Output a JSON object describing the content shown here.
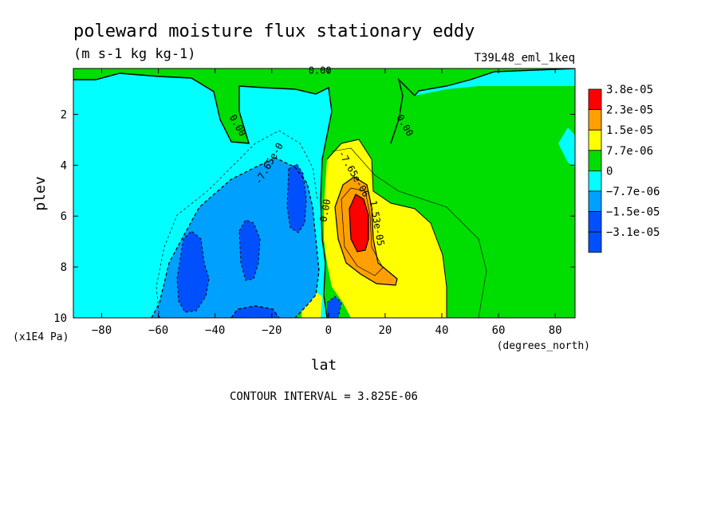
{
  "chart_data": {
    "type": "contour",
    "title": "poleward moisture flux stationary eddy",
    "subtitle": "(m s-1 kg kg-1)",
    "dataset_label": "T39L48_eml_1keq",
    "xlabel": "lat",
    "x_units": "(degrees_north)",
    "ylabel": "plev",
    "y_units": "(x1E4 Pa)",
    "xlim": [
      -90,
      87
    ],
    "ylim": [
      10,
      0.2
    ],
    "x_ticks": [
      -80,
      -60,
      -40,
      -20,
      0,
      20,
      40,
      60,
      80
    ],
    "y_ticks": [
      2,
      4,
      6,
      8,
      10
    ],
    "legend_position": "right",
    "legend": [
      {
        "label": "3.8e-05",
        "color": "#ff0000"
      },
      {
        "label": "2.3e-05",
        "color": "#ffa000"
      },
      {
        "label": "1.5e-05",
        "color": "#ffff00"
      },
      {
        "label": "7.7e-06",
        "color": "#00dd00"
      },
      {
        "label": "0",
        "color": "#00ffff"
      },
      {
        "label": "−7.7e-06",
        "color": "#00a0ff"
      },
      {
        "label": "−1.5e-05",
        "color": "#0050ff"
      },
      {
        "label": "−3.1e-05",
        "color": null
      }
    ],
    "contour_labels": [
      {
        "text": "0.00",
        "lat": -3,
        "plev": 0.4
      },
      {
        "text": "0.00",
        "lat": -33,
        "plev": 2.5
      },
      {
        "text": "0.00",
        "lat": 26,
        "plev": 2.5
      },
      {
        "text": "-7.65e-0",
        "lat": -20,
        "plev": 4
      },
      {
        "text": "-7.65e-06",
        "lat": 8,
        "plev": 4.4
      },
      {
        "text": "0.00",
        "lat": 0,
        "plev": 5.8
      },
      {
        "text": "1.53e-05",
        "lat": 16,
        "plev": 6.3
      }
    ],
    "contour_interval_text": "CONTOUR INTERVAL = 3.825E-06"
  }
}
